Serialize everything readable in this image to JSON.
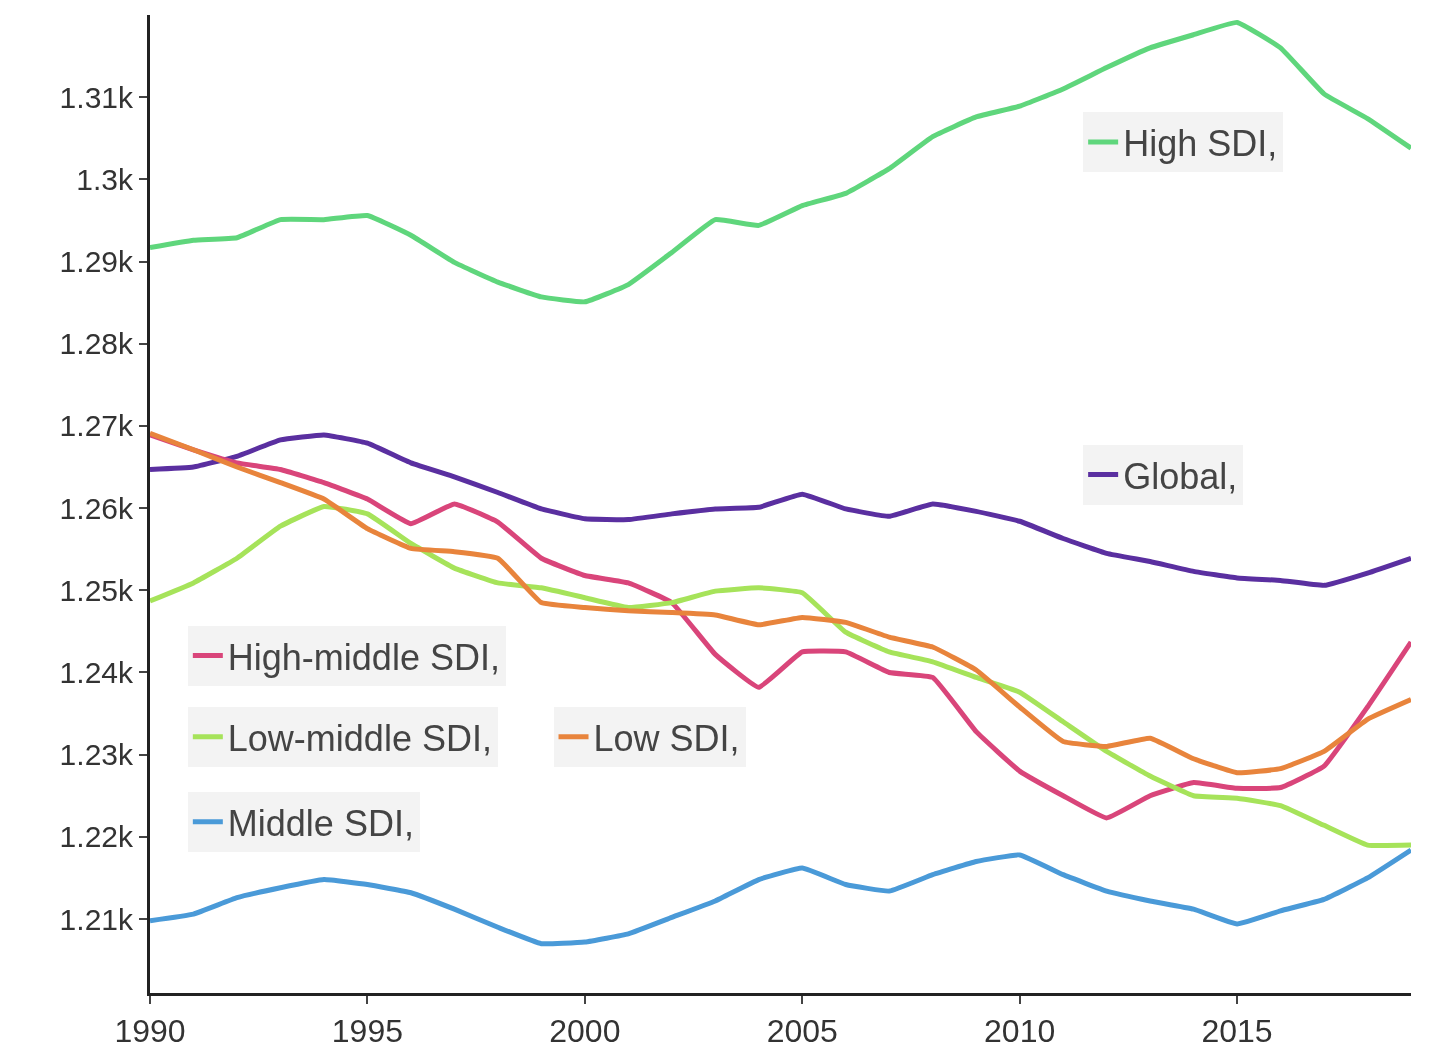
{
  "chart_data": {
    "type": "line",
    "x": [
      1990,
      1991,
      1992,
      1993,
      1994,
      1995,
      1996,
      1997,
      1998,
      1999,
      2000,
      2001,
      2002,
      2003,
      2004,
      2005,
      2006,
      2007,
      2008,
      2009,
      2010,
      2011,
      2012,
      2013,
      2014,
      2015,
      2016,
      2017,
      2018,
      2019
    ],
    "series": [
      {
        "name": "High SDI,",
        "color": "#5fd67c",
        "values": [
          1291.7,
          1292.6,
          1292.9,
          1295.1,
          1295.1,
          1295.6,
          1293.2,
          1289.9,
          1287.5,
          1285.7,
          1285.1,
          1287.2,
          1291.1,
          1295.1,
          1294.4,
          1296.8,
          1298.3,
          1301.3,
          1305.2,
          1307.6,
          1308.9,
          1311,
          1313.6,
          1316,
          1317.6,
          1319.1,
          1316,
          1310.4,
          1307.4,
          1303.8
        ]
      },
      {
        "name": "Global,",
        "color": "#5a2fa0",
        "values": [
          1264.7,
          1265,
          1266.3,
          1268.3,
          1268.9,
          1267.9,
          1265.5,
          1263.8,
          1261.9,
          1259.9,
          1258.7,
          1258.6,
          1259.3,
          1259.9,
          1260.1,
          1261.7,
          1259.9,
          1259,
          1260.5,
          1259.6,
          1258.4,
          1256.3,
          1254.5,
          1253.5,
          1252.3,
          1251.5,
          1251.2,
          1250.6,
          1252.1,
          1253.9
        ]
      },
      {
        "name": "High-middle SDI,",
        "color": "#d9457a",
        "values": [
          1268.9,
          1267.1,
          1265.5,
          1264.7,
          1263.1,
          1261.1,
          1258.1,
          1260.5,
          1258.3,
          1253.9,
          1251.8,
          1250.9,
          1248.5,
          1242.2,
          1238.2,
          1242.5,
          1242.5,
          1240,
          1239.4,
          1232.8,
          1228,
          1225,
          1222.3,
          1225,
          1226.6,
          1225.9,
          1226,
          1228.6,
          1235.8,
          1243.7
        ]
      },
      {
        "name": "Low-middle SDI,",
        "color": "#a6e35a",
        "values": [
          1248.7,
          1250.9,
          1253.9,
          1257.8,
          1260.2,
          1259.3,
          1255.7,
          1252.7,
          1250.9,
          1250.3,
          1249.1,
          1247.9,
          1248.5,
          1249.9,
          1250.3,
          1249.7,
          1244.9,
          1242.5,
          1241.3,
          1239.4,
          1237.6,
          1234,
          1230.4,
          1227.4,
          1225,
          1224.7,
          1223.8,
          1221.4,
          1219,
          1219
        ]
      },
      {
        "name": "Low SDI,",
        "color": "#e8843c",
        "values": [
          1269.1,
          1267.1,
          1265,
          1263.1,
          1261.1,
          1257.5,
          1255.1,
          1254.7,
          1253.9,
          1248.5,
          1247.9,
          1247.5,
          1247.3,
          1247,
          1245.8,
          1246.7,
          1246.1,
          1244.3,
          1243.1,
          1240.3,
          1235.8,
          1231.6,
          1231,
          1232,
          1229.5,
          1227.8,
          1228.3,
          1230.4,
          1234.3,
          1236.7
        ]
      },
      {
        "name": "Middle SDI,",
        "color": "#4a9ad8",
        "values": [
          1209.8,
          1210.6,
          1212.6,
          1213.8,
          1214.8,
          1214.2,
          1213.2,
          1211.2,
          1209,
          1207,
          1207.2,
          1208.2,
          1210.2,
          1212.2,
          1214.8,
          1216.2,
          1214.2,
          1213.4,
          1215.4,
          1217,
          1217.8,
          1215.4,
          1213.4,
          1212.2,
          1211.2,
          1209.4,
          1211,
          1212.4,
          1215,
          1218.4
        ]
      }
    ],
    "xlim": [
      1990,
      2019
    ],
    "xticks": [
      1990,
      1995,
      2000,
      2005,
      2010,
      2015
    ],
    "ylim": [
      1201,
      1320
    ],
    "yticks": [
      {
        "value": 1210,
        "label": "1.21k"
      },
      {
        "value": 1220,
        "label": "1.22k"
      },
      {
        "value": 1230,
        "label": "1.23k"
      },
      {
        "value": 1240,
        "label": "1.24k"
      },
      {
        "value": 1250,
        "label": "1.25k"
      },
      {
        "value": 1260,
        "label": "1.26k"
      },
      {
        "value": 1270,
        "label": "1.27k"
      },
      {
        "value": 1280,
        "label": "1.28k"
      },
      {
        "value": 1290,
        "label": "1.29k"
      },
      {
        "value": 1300,
        "label": "1.3k"
      },
      {
        "value": 1310,
        "label": "1.31k"
      }
    ],
    "legend": "right",
    "marker": "none",
    "line_style": "solid"
  }
}
